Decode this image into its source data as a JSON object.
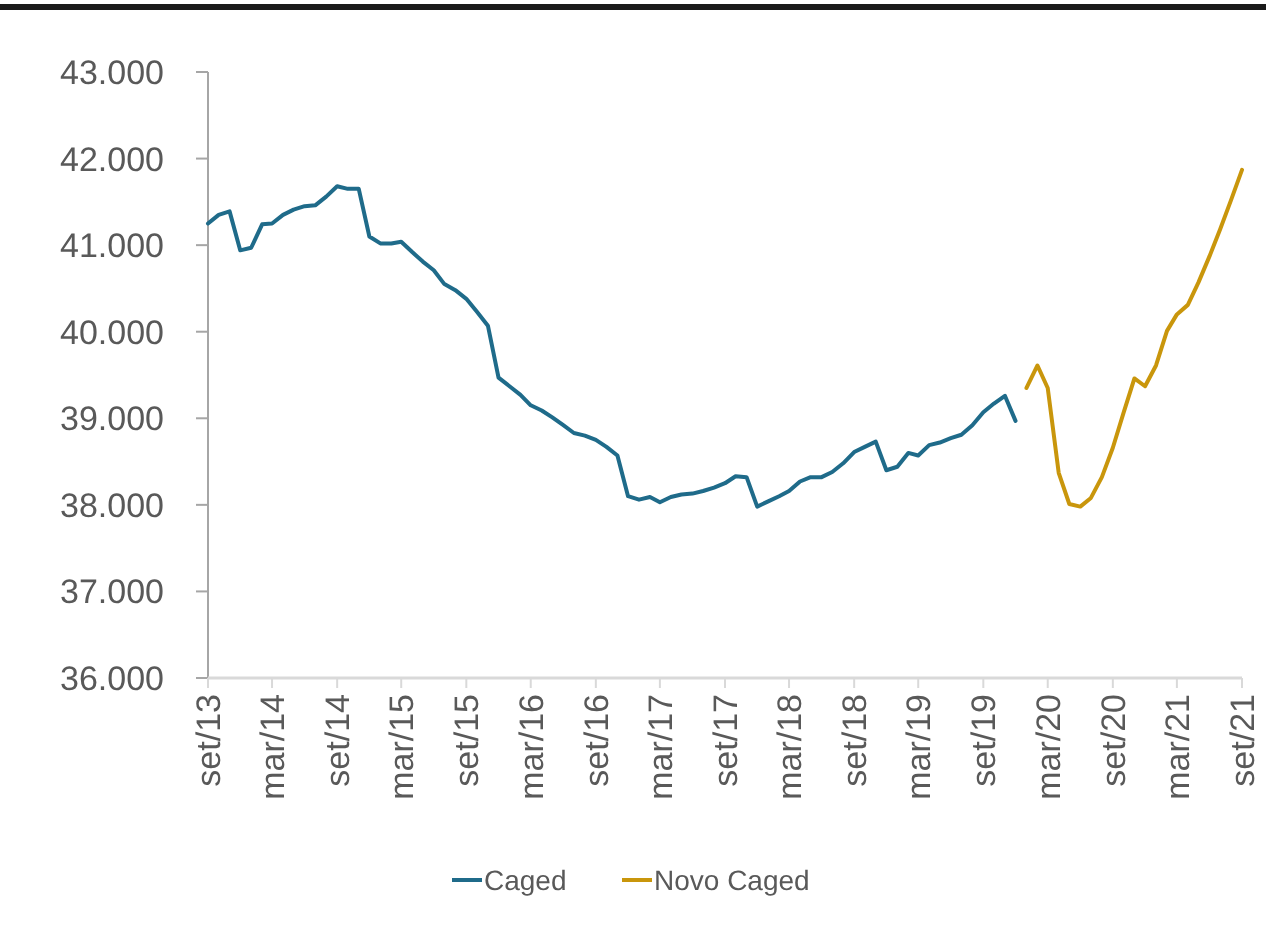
{
  "chart_data": {
    "type": "line",
    "legend": "bottom",
    "grid": false,
    "marker": "none",
    "line_style": "solid",
    "xlim": [
      "2013-09",
      "2021-09"
    ],
    "xticks": [
      {
        "value": "2013-09",
        "label": "set/13"
      },
      {
        "value": "2014-03",
        "label": "mar/14"
      },
      {
        "value": "2014-09",
        "label": "set/14"
      },
      {
        "value": "2015-03",
        "label": "mar/15"
      },
      {
        "value": "2015-09",
        "label": "set/15"
      },
      {
        "value": "2016-03",
        "label": "mar/16"
      },
      {
        "value": "2016-09",
        "label": "set/16"
      },
      {
        "value": "2017-03",
        "label": "mar/17"
      },
      {
        "value": "2017-09",
        "label": "set/17"
      },
      {
        "value": "2018-03",
        "label": "mar/18"
      },
      {
        "value": "2018-09",
        "label": "set/18"
      },
      {
        "value": "2019-03",
        "label": "mar/19"
      },
      {
        "value": "2019-09",
        "label": "set/19"
      },
      {
        "value": "2020-03",
        "label": "mar/20"
      },
      {
        "value": "2020-09",
        "label": "set/20"
      },
      {
        "value": "2021-03",
        "label": "mar/21"
      },
      {
        "value": "2021-09",
        "label": "set/21"
      }
    ],
    "ylim": [
      36000,
      43000
    ],
    "yticks": [
      {
        "value": 36000,
        "label": "36.000"
      },
      {
        "value": 37000,
        "label": "37.000"
      },
      {
        "value": 38000,
        "label": "38.000"
      },
      {
        "value": 39000,
        "label": "39.000"
      },
      {
        "value": 40000,
        "label": "40.000"
      },
      {
        "value": 41000,
        "label": "41.000"
      },
      {
        "value": 42000,
        "label": "42.000"
      },
      {
        "value": 43000,
        "label": "43.000"
      }
    ],
    "series": [
      {
        "name": "Caged",
        "color": "#1f6b8a",
        "x": [
          "2013-09",
          "2013-10",
          "2013-11",
          "2013-12",
          "2014-01",
          "2014-02",
          "2014-03",
          "2014-04",
          "2014-05",
          "2014-06",
          "2014-07",
          "2014-08",
          "2014-09",
          "2014-10",
          "2014-11",
          "2014-12",
          "2015-01",
          "2015-02",
          "2015-03",
          "2015-04",
          "2015-05",
          "2015-06",
          "2015-07",
          "2015-08",
          "2015-09",
          "2015-10",
          "2015-11",
          "2015-12",
          "2016-01",
          "2016-02",
          "2016-03",
          "2016-04",
          "2016-05",
          "2016-06",
          "2016-07",
          "2016-08",
          "2016-09",
          "2016-10",
          "2016-11",
          "2016-12",
          "2017-01",
          "2017-02",
          "2017-03",
          "2017-04",
          "2017-05",
          "2017-06",
          "2017-07",
          "2017-08",
          "2017-09",
          "2017-10",
          "2017-11",
          "2017-12",
          "2018-01",
          "2018-02",
          "2018-03",
          "2018-04",
          "2018-05",
          "2018-06",
          "2018-07",
          "2018-08",
          "2018-09",
          "2018-10",
          "2018-11",
          "2018-12",
          "2019-01",
          "2019-02",
          "2019-03",
          "2019-04",
          "2019-05",
          "2019-06",
          "2019-07",
          "2019-08",
          "2019-09",
          "2019-10",
          "2019-11",
          "2019-12"
        ],
        "values": [
          41250,
          41350,
          41390,
          40940,
          40970,
          41240,
          41250,
          41350,
          41410,
          41450,
          41460,
          41560,
          41680,
          41650,
          41650,
          41100,
          41020,
          41020,
          41040,
          40920,
          40810,
          40710,
          40550,
          40480,
          40380,
          40230,
          40070,
          39470,
          39370,
          39270,
          39150,
          39090,
          39010,
          38920,
          38830,
          38800,
          38750,
          38670,
          38570,
          38100,
          38060,
          38090,
          38030,
          38090,
          38120,
          38130,
          38160,
          38200,
          38250,
          38330,
          38320,
          37980,
          38040,
          38100,
          38160,
          38270,
          38320,
          38320,
          38380,
          38480,
          38610,
          38670,
          38730,
          38400,
          38440,
          38600,
          38570,
          38690,
          38720,
          38770,
          38810,
          38920,
          39070,
          39170,
          39260,
          38970
        ]
      },
      {
        "name": "Novo Caged",
        "color": "#c9960c",
        "x": [
          "2020-01",
          "2020-02",
          "2020-03",
          "2020-04",
          "2020-05",
          "2020-06",
          "2020-07",
          "2020-08",
          "2020-09",
          "2020-10",
          "2020-11",
          "2020-12",
          "2021-01",
          "2021-02",
          "2021-03",
          "2021-04",
          "2021-05",
          "2021-06",
          "2021-07",
          "2021-08",
          "2021-09"
        ],
        "values": [
          39350,
          39610,
          39350,
          38370,
          38010,
          37980,
          38080,
          38320,
          38660,
          39060,
          39460,
          39370,
          39610,
          40010,
          40200,
          40310,
          40570,
          40870,
          41180,
          41520,
          41870
        ]
      }
    ]
  }
}
